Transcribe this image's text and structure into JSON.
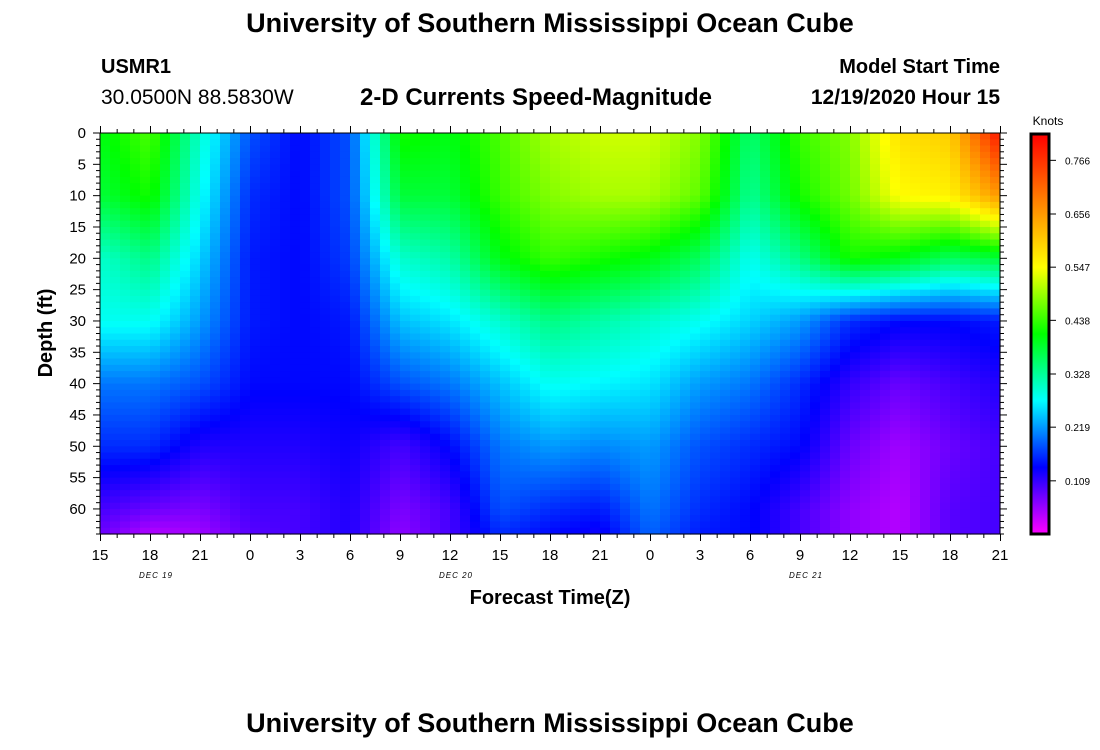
{
  "header": {
    "title": "University of Southern Mississippi Ocean Cube",
    "station_id": "USMR1",
    "station_coords": "30.0500N 88.5830W",
    "plot_title": "2-D Currents Speed-Magnitude",
    "model_label": "Model Start Time",
    "model_time": "12/19/2020 Hour 15"
  },
  "footer": {
    "title": "University of Southern Mississippi Ocean Cube"
  },
  "chart_data": {
    "type": "heatmap",
    "title": "2-D Currents Speed-Magnitude",
    "xlabel": "Forecast Time(Z)",
    "ylabel": "Depth (ft)",
    "x_tick_labels": [
      "15",
      "18",
      "21",
      "0",
      "3",
      "6",
      "9",
      "12",
      "15",
      "18",
      "21",
      "0",
      "3",
      "6",
      "9",
      "12",
      "15",
      "18",
      "21"
    ],
    "date_labels": [
      {
        "text": "DEC 19",
        "tick_index": 1
      },
      {
        "text": "DEC 20",
        "tick_index": 7
      },
      {
        "text": "DEC 21",
        "tick_index": 14
      }
    ],
    "y_tick_labels": [
      "0",
      "5",
      "10",
      "15",
      "20",
      "25",
      "30",
      "35",
      "40",
      "45",
      "50",
      "55",
      "60"
    ],
    "ylim": [
      0,
      64
    ],
    "colorbar": {
      "unit": "Knots",
      "tick_labels": [
        "0.109",
        "0.219",
        "0.328",
        "0.438",
        "0.547",
        "0.656",
        "0.766"
      ],
      "range": [
        0.0,
        0.82
      ]
    },
    "colors": [
      "#ff00ff",
      "#0000ff",
      "#00ffff",
      "#00ff00",
      "#ffff00",
      "#ff8000",
      "#ff0000"
    ],
    "times": [
      0,
      3,
      6,
      9,
      12,
      15,
      18,
      21,
      24,
      27,
      30,
      33,
      36,
      39,
      42,
      45,
      48,
      51,
      54
    ],
    "profile_depths": [
      0,
      10,
      20,
      30,
      40,
      50,
      60,
      64
    ],
    "profiles": [
      [
        0.4,
        0.38,
        0.3,
        0.28,
        0.2,
        0.16,
        0.1,
        0.08
      ],
      [
        0.45,
        0.42,
        0.34,
        0.28,
        0.2,
        0.16,
        0.08,
        0.04
      ],
      [
        0.3,
        0.28,
        0.25,
        0.22,
        0.18,
        0.12,
        0.07,
        0.05
      ],
      [
        0.18,
        0.16,
        0.15,
        0.15,
        0.14,
        0.12,
        0.1,
        0.09
      ],
      [
        0.14,
        0.14,
        0.14,
        0.14,
        0.14,
        0.12,
        0.1,
        0.1
      ],
      [
        0.18,
        0.18,
        0.17,
        0.15,
        0.14,
        0.13,
        0.12,
        0.12
      ],
      [
        0.42,
        0.38,
        0.3,
        0.24,
        0.18,
        0.1,
        0.07,
        0.06
      ],
      [
        0.4,
        0.38,
        0.32,
        0.26,
        0.2,
        0.14,
        0.1,
        0.1
      ],
      [
        0.45,
        0.44,
        0.4,
        0.3,
        0.24,
        0.2,
        0.18,
        0.16
      ],
      [
        0.5,
        0.48,
        0.44,
        0.34,
        0.28,
        0.22,
        0.16,
        0.14
      ],
      [
        0.52,
        0.5,
        0.42,
        0.32,
        0.27,
        0.21,
        0.15,
        0.13
      ],
      [
        0.52,
        0.5,
        0.4,
        0.3,
        0.26,
        0.22,
        0.2,
        0.19
      ],
      [
        0.48,
        0.46,
        0.36,
        0.28,
        0.22,
        0.18,
        0.16,
        0.15
      ],
      [
        0.35,
        0.33,
        0.28,
        0.25,
        0.2,
        0.16,
        0.14,
        0.14
      ],
      [
        0.44,
        0.42,
        0.34,
        0.22,
        0.16,
        0.14,
        0.1,
        0.1
      ],
      [
        0.48,
        0.47,
        0.42,
        0.16,
        0.11,
        0.08,
        0.06,
        0.06
      ],
      [
        0.58,
        0.55,
        0.4,
        0.14,
        0.08,
        0.05,
        0.04,
        0.04
      ],
      [
        0.6,
        0.56,
        0.36,
        0.14,
        0.1,
        0.08,
        0.09,
        0.09
      ],
      [
        0.8,
        0.66,
        0.38,
        0.15,
        0.12,
        0.1,
        0.1,
        0.1
      ]
    ]
  }
}
